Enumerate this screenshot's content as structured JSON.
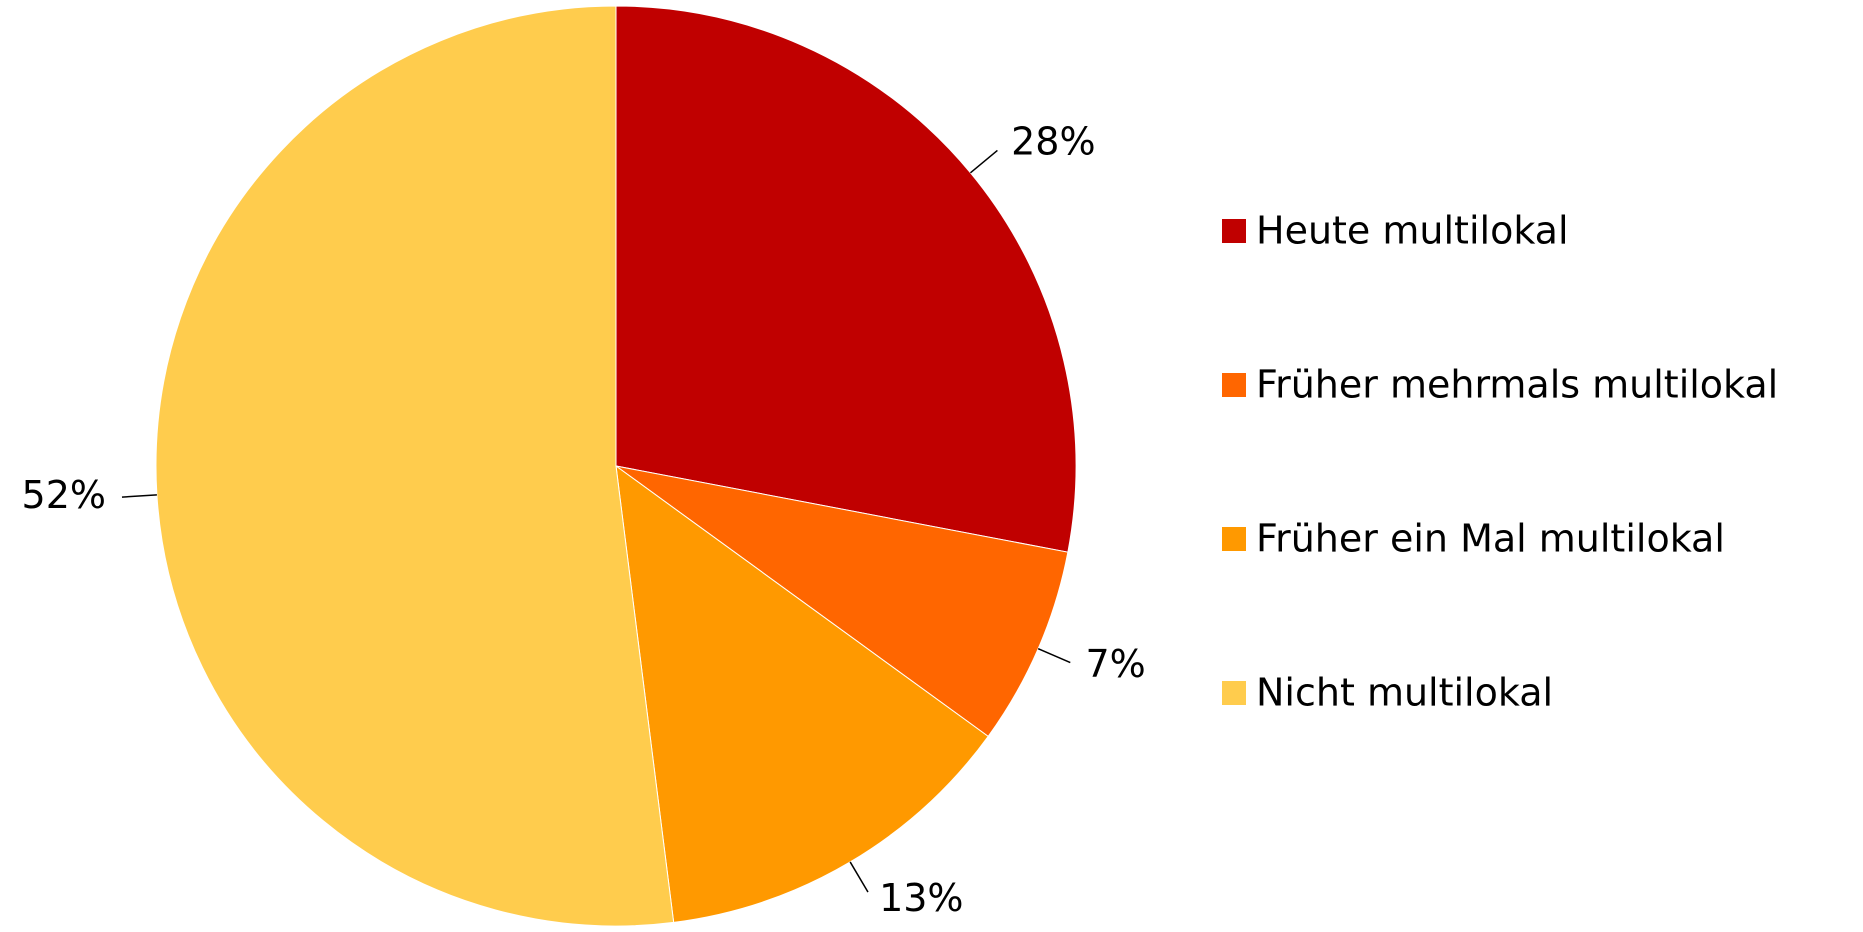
{
  "chart_data": {
    "type": "pie",
    "categories": [
      "Heute multilokal",
      "Früher mehrmals multilokal",
      "Früher ein Mal multilokal",
      "Nicht multilokal"
    ],
    "values": [
      28,
      7,
      13,
      52
    ],
    "value_labels": [
      "28%",
      "7%",
      "13%",
      "52%"
    ],
    "colors": [
      "#c00000",
      "#ff6600",
      "#ff9900",
      "#ffcc4d"
    ],
    "legend": "right"
  }
}
